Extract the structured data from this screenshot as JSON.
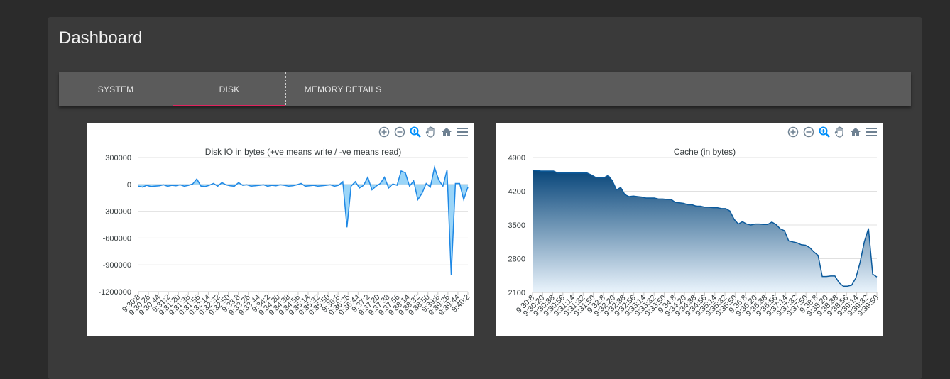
{
  "page": {
    "title": "Dashboard"
  },
  "tabs": [
    {
      "label": "SYSTEM",
      "active": false
    },
    {
      "label": "DISK",
      "active": true
    },
    {
      "label": "MEMORY DETAILS",
      "active": false
    }
  ],
  "colors": {
    "accent": "#e2235f",
    "chart_stroke": "#1e88e5",
    "chart_area": "#8fd0f7",
    "cache_dark": "#08467a"
  },
  "toolbar_icons": [
    "zoom-in-icon",
    "zoom-out-icon",
    "selection-zoom-icon",
    "pan-hand-icon",
    "home-reset-icon",
    "menu-icon"
  ],
  "chart_data": [
    {
      "type": "area",
      "title": "Disk IO in bytes (+ve means write / -ve means read)",
      "xlabel": "",
      "ylabel": "",
      "ylim": [
        -1200000,
        300000
      ],
      "y_ticks": [
        "300000",
        "0",
        "-300000",
        "-600000",
        "-900000",
        "-1200000"
      ],
      "x_ticks": [
        "9:30:8",
        "9:30:26",
        "9:30:44",
        "9:31:2",
        "9:31:20",
        "9:31:38",
        "9:31:56",
        "9:32:14",
        "9:32:32",
        "9:32:50",
        "9:33:8",
        "9:33:26",
        "9:33:44",
        "9:34:2",
        "9:34:20",
        "9:34:38",
        "9:34:56",
        "9:35:14",
        "9:35:32",
        "9:35:50",
        "9:36:8",
        "9:36:26",
        "9:36:44",
        "9:37:2",
        "9:37:20",
        "9:37:38",
        "9:37:56",
        "9:38:14",
        "9:38:32",
        "9:38:50",
        "9:39:8",
        "9:39:26",
        "9:39:44",
        "9:40:2"
      ],
      "values": [
        -20000,
        -30000,
        -10000,
        -25000,
        -20000,
        -15000,
        -5000,
        -20000,
        -10000,
        -15000,
        -5000,
        -20000,
        -10000,
        5000,
        60000,
        -20000,
        -25000,
        -10000,
        10000,
        -20000,
        20000,
        -5000,
        -15000,
        -20000,
        20000,
        -10000,
        -5000,
        -20000,
        -15000,
        -10000,
        -5000,
        -20000,
        -10000,
        -15000,
        -5000,
        -10000,
        -20000,
        -15000,
        -5000,
        10000,
        -20000,
        -15000,
        -10000,
        -20000,
        -15000,
        -10000,
        -5000,
        -20000,
        -10000,
        30000,
        -480000,
        -20000,
        30000,
        -40000,
        -10000,
        80000,
        -60000,
        -20000,
        10000,
        80000,
        -40000,
        5000,
        -10000,
        150000,
        130000,
        -20000,
        40000,
        -170000,
        -100000,
        10000,
        -30000,
        190000,
        50000,
        -20000,
        160000,
        -1010000,
        10000,
        10000,
        -170000,
        -30000
      ]
    },
    {
      "type": "area",
      "title": "Cache (in bytes)",
      "xlabel": "",
      "ylabel": "",
      "ylim": [
        2100,
        4900
      ],
      "y_ticks": [
        "4900",
        "4200",
        "3500",
        "2800",
        "2100"
      ],
      "x_ticks": [
        "9:30:8",
        "9:30:20",
        "9:30:38",
        "9:30:56",
        "9:31:14",
        "9:31:32",
        "9:31:50",
        "9:32:8",
        "9:32:20",
        "9:32:38",
        "9:32:56",
        "9:33:14",
        "9:33:32",
        "9:33:50",
        "9:34:8",
        "9:34:20",
        "9:34:38",
        "9:34:56",
        "9:35:14",
        "9:35:32",
        "9:35:50",
        "9:36:8",
        "9:36:20",
        "9:36:38",
        "9:36:56",
        "9:37:14",
        "9:37:32",
        "9:37:50",
        "9:38:8",
        "9:38:20",
        "9:38:38",
        "9:38:56",
        "9:39:14",
        "9:39:32",
        "9:39:50"
      ],
      "values": [
        4640,
        4630,
        4620,
        4620,
        4620,
        4620,
        4580,
        4580,
        4580,
        4580,
        4580,
        4580,
        4580,
        4580,
        4540,
        4490,
        4480,
        4480,
        4530,
        4420,
        4230,
        4280,
        4130,
        4090,
        4100,
        4090,
        4080,
        4060,
        4060,
        4060,
        4040,
        4040,
        4030,
        4030,
        3970,
        3960,
        3950,
        3920,
        3920,
        3890,
        3890,
        3870,
        3870,
        3860,
        3860,
        3840,
        3840,
        3790,
        3620,
        3520,
        3570,
        3520,
        3500,
        3520,
        3520,
        3510,
        3510,
        3560,
        3510,
        3420,
        3380,
        3170,
        3150,
        3130,
        3090,
        3080,
        3030,
        2940,
        2870,
        2430,
        2430,
        2440,
        2440,
        2300,
        2230,
        2230,
        2250,
        2400,
        2720,
        3150,
        3430,
        2480,
        2420
      ]
    }
  ]
}
